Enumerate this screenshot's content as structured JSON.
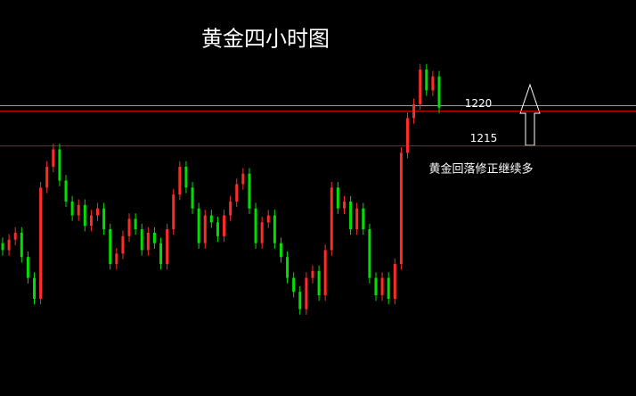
{
  "chart_data": {
    "type": "candlestick",
    "title": "黄金四小时图",
    "annotation": "黄金回落修正继续多",
    "ylim": [
      1179,
      1236
    ],
    "up_color": "#ff2a2a",
    "down_color": "#00e000",
    "level_color": "#e00000",
    "levels": [
      1220,
      1215
    ],
    "candles": [
      [
        1201,
        1201.8,
        1199.2,
        1200
      ],
      [
        1200,
        1202.3,
        1199.2,
        1201.5
      ],
      [
        1201.5,
        1203.3,
        1200.7,
        1202.5
      ],
      [
        1202.5,
        1203.3,
        1198.2,
        1199
      ],
      [
        1199,
        1199.8,
        1195.2,
        1196
      ],
      [
        1196,
        1196.8,
        1192.2,
        1193
      ],
      [
        1193,
        1209.8,
        1192.2,
        1209
      ],
      [
        1209,
        1212.8,
        1208.2,
        1212
      ],
      [
        1212,
        1215.3,
        1211.2,
        1214.5
      ],
      [
        1214.5,
        1215.3,
        1209.2,
        1210
      ],
      [
        1210,
        1210.8,
        1206.2,
        1207
      ],
      [
        1207,
        1207.8,
        1204.2,
        1205
      ],
      [
        1205,
        1207.3,
        1204.2,
        1206.5
      ],
      [
        1206.5,
        1207.3,
        1202.7,
        1203.5
      ],
      [
        1203.5,
        1205.8,
        1202.7,
        1205
      ],
      [
        1205,
        1206.8,
        1204.2,
        1206
      ],
      [
        1206,
        1206.8,
        1202.2,
        1203
      ],
      [
        1203,
        1203.8,
        1197.2,
        1198
      ],
      [
        1198,
        1200.3,
        1197.2,
        1199.5
      ],
      [
        1199.5,
        1202.8,
        1198.7,
        1202
      ],
      [
        1202,
        1205.3,
        1201.2,
        1204.5
      ],
      [
        1204.5,
        1205.3,
        1202.2,
        1203
      ],
      [
        1203,
        1203.8,
        1199.2,
        1200
      ],
      [
        1200,
        1203.3,
        1199.2,
        1202.5
      ],
      [
        1202.5,
        1203.3,
        1200.2,
        1201
      ],
      [
        1201,
        1201.8,
        1197.2,
        1198
      ],
      [
        1198,
        1203.8,
        1197.2,
        1203
      ],
      [
        1203,
        1208.8,
        1202.2,
        1208
      ],
      [
        1208,
        1212.8,
        1207.2,
        1212
      ],
      [
        1212,
        1212.8,
        1208.2,
        1209
      ],
      [
        1209,
        1209.8,
        1205.2,
        1206
      ],
      [
        1206,
        1206.8,
        1200.2,
        1201
      ],
      [
        1201,
        1205.8,
        1200.2,
        1205
      ],
      [
        1205,
        1205.8,
        1203.2,
        1204
      ],
      [
        1204,
        1204.8,
        1201.2,
        1202
      ],
      [
        1202,
        1205.8,
        1201.2,
        1205
      ],
      [
        1205,
        1207.8,
        1204.2,
        1207
      ],
      [
        1207,
        1210.3,
        1206.2,
        1209.5
      ],
      [
        1209.5,
        1211.8,
        1208.7,
        1211
      ],
      [
        1211,
        1211.8,
        1205.2,
        1206
      ],
      [
        1206,
        1206.8,
        1200.2,
        1201
      ],
      [
        1201,
        1204.8,
        1200.2,
        1204
      ],
      [
        1204,
        1205.8,
        1203.2,
        1205
      ],
      [
        1205,
        1205.8,
        1200.2,
        1201
      ],
      [
        1201,
        1201.8,
        1198.2,
        1199
      ],
      [
        1199,
        1199.8,
        1195.2,
        1196
      ],
      [
        1196,
        1196.8,
        1193.2,
        1194
      ],
      [
        1194,
        1194.8,
        1190.7,
        1191.5
      ],
      [
        1191.5,
        1196.8,
        1190.7,
        1196
      ],
      [
        1196,
        1197.8,
        1195.2,
        1197
      ],
      [
        1197,
        1197.8,
        1192.7,
        1193.5
      ],
      [
        1193.5,
        1200.8,
        1192.7,
        1200
      ],
      [
        1200,
        1209.8,
        1199.2,
        1209
      ],
      [
        1209,
        1209.8,
        1205.2,
        1206
      ],
      [
        1206,
        1207.8,
        1205.2,
        1207
      ],
      [
        1207,
        1207.8,
        1202.2,
        1203
      ],
      [
        1203,
        1206.8,
        1202.2,
        1206
      ],
      [
        1206,
        1206.8,
        1202.2,
        1203
      ],
      [
        1203,
        1203.8,
        1195.2,
        1196
      ],
      [
        1196,
        1196.8,
        1192.7,
        1193.5
      ],
      [
        1193.5,
        1196.8,
        1192.7,
        1196
      ],
      [
        1196,
        1196.8,
        1192.2,
        1193
      ],
      [
        1193,
        1198.8,
        1192.2,
        1198
      ],
      [
        1198,
        1214.8,
        1197.2,
        1214
      ],
      [
        1214,
        1219.8,
        1213.2,
        1219
      ],
      [
        1219,
        1221.8,
        1218.2,
        1221
      ],
      [
        1221,
        1226.8,
        1220.2,
        1226
      ],
      [
        1226,
        1226.8,
        1222.2,
        1223
      ],
      [
        1223,
        1225.8,
        1222.2,
        1225
      ],
      [
        1225,
        1225.8,
        1219.7,
        1220.5
      ]
    ]
  }
}
